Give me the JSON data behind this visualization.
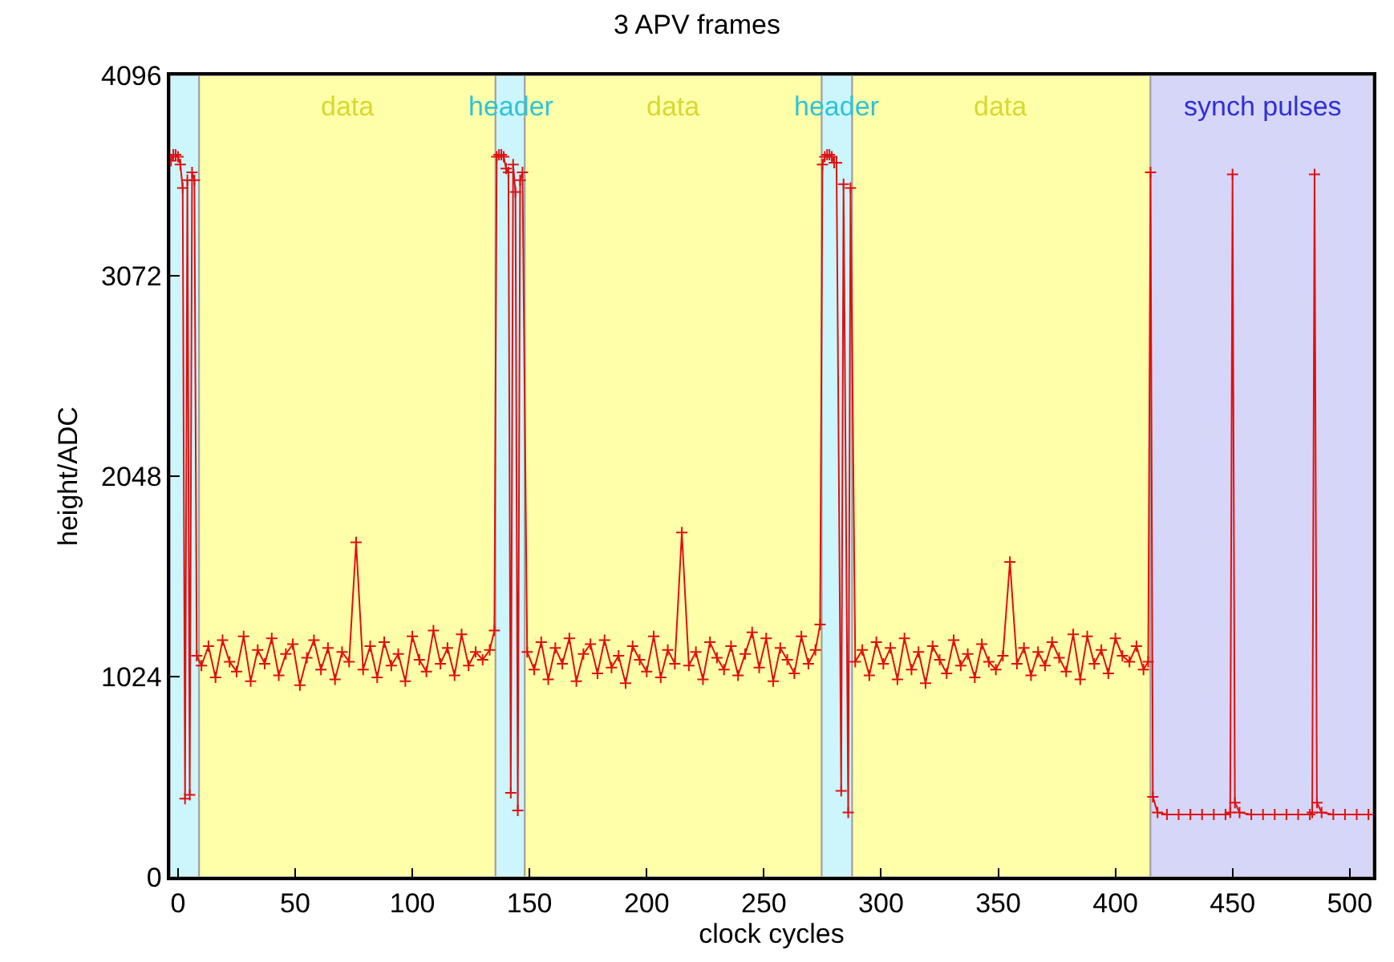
{
  "chart_data": {
    "type": "line",
    "title": "3 APV frames",
    "xlabel": "clock cycles",
    "ylabel": "height/ADC",
    "xlim": [
      -3.4,
      510
    ],
    "xticks": [
      0,
      50,
      100,
      150,
      200,
      250,
      300,
      350,
      400,
      450,
      500
    ],
    "ylim": [
      0,
      4096
    ],
    "yticks": [
      0,
      1024,
      2048,
      3072,
      4096
    ],
    "grid": false,
    "marker": "cross",
    "line_style": "solid",
    "bands": [
      {
        "axis": "x",
        "from": -3.4,
        "to": 9,
        "label": null,
        "color": "#ccf6fc"
      },
      {
        "axis": "x",
        "from": 9,
        "to": 135.5,
        "label": "data",
        "color": "#ffffaa"
      },
      {
        "axis": "x",
        "from": 135.5,
        "to": 148,
        "label": "header",
        "color": "#ccf6fc"
      },
      {
        "axis": "x",
        "from": 148,
        "to": 274.7,
        "label": "data",
        "color": "#ffffaa"
      },
      {
        "axis": "x",
        "from": 274.7,
        "to": 287.7,
        "label": "header",
        "color": "#ccf6fc"
      },
      {
        "axis": "x",
        "from": 287.7,
        "to": 415,
        "label": "data",
        "color": "#ffffaa"
      },
      {
        "axis": "x",
        "from": 415,
        "to": 510,
        "label": "synch pulses",
        "color": "#d6d6f8"
      }
    ],
    "series": [
      {
        "color": "#e01010",
        "x": [
          -3,
          -2,
          -1,
          0,
          1,
          2,
          3,
          4,
          5,
          6,
          7,
          8,
          10,
          13,
          16,
          19,
          22,
          25,
          28,
          31,
          34,
          37,
          40,
          43,
          46,
          49,
          52,
          55,
          58,
          61,
          64,
          67,
          70,
          73,
          76,
          79,
          82,
          85,
          88,
          91,
          94,
          97,
          100,
          103,
          106,
          109,
          112,
          115,
          118,
          121,
          124,
          127,
          130,
          133,
          135,
          136,
          137,
          138,
          139,
          140,
          141,
          142,
          143,
          144,
          145,
          146,
          147,
          149,
          152,
          155,
          158,
          161,
          164,
          167,
          170,
          173,
          176,
          179,
          182,
          185,
          188,
          191,
          194,
          197,
          200,
          203,
          206,
          209,
          212,
          215,
          218,
          221,
          224,
          227,
          230,
          233,
          236,
          239,
          242,
          245,
          248,
          251,
          254,
          257,
          260,
          263,
          266,
          269,
          272,
          274,
          275,
          276,
          277,
          278,
          279,
          280,
          281,
          283,
          284,
          286,
          287,
          289,
          292,
          295,
          298,
          301,
          304,
          307,
          310,
          313,
          316,
          319,
          322,
          325,
          328,
          331,
          334,
          337,
          340,
          343,
          346,
          349,
          352,
          355,
          358,
          361,
          364,
          367,
          370,
          373,
          376,
          379,
          382,
          385,
          388,
          391,
          394,
          397,
          400,
          403,
          406,
          409,
          412,
          414,
          415,
          416,
          418,
          422,
          427,
          432,
          437,
          442,
          447,
          449,
          450,
          451,
          453,
          458,
          463,
          468,
          473,
          478,
          483,
          484,
          485,
          486,
          488,
          493,
          498,
          503,
          508
        ],
        "values": [
          3660,
          3690,
          3690,
          3680,
          3640,
          3520,
          400,
          3560,
          420,
          3600,
          3560,
          1130,
          1080,
          1180,
          1020,
          1210,
          1100,
          1050,
          1230,
          1000,
          1160,
          1090,
          1220,
          1030,
          1140,
          1190,
          980,
          1120,
          1210,
          1060,
          1170,
          1010,
          1150,
          1100,
          1710,
          1060,
          1180,
          1020,
          1200,
          1080,
          1140,
          1000,
          1230,
          1110,
          1050,
          1260,
          1090,
          1170,
          1030,
          1240,
          1080,
          1150,
          1110,
          1160,
          1260,
          3680,
          3690,
          3690,
          3680,
          3620,
          3600,
          430,
          3640,
          3500,
          340,
          3560,
          3600,
          1150,
          1060,
          1200,
          1010,
          1170,
          1090,
          1220,
          1000,
          1140,
          1190,
          1040,
          1210,
          1070,
          1130,
          990,
          1180,
          1110,
          1050,
          1230,
          1020,
          1160,
          1090,
          1760,
          1080,
          1150,
          1010,
          1200,
          1120,
          1060,
          1180,
          1030,
          1140,
          1250,
          1070,
          1220,
          1000,
          1170,
          1110,
          1040,
          1230,
          1090,
          1160,
          1290,
          3640,
          3680,
          3690,
          3690,
          3680,
          3650,
          3650,
          440,
          3540,
          330,
          3520,
          1100,
          1160,
          1030,
          1200,
          1090,
          1170,
          1010,
          1220,
          1060,
          1150,
          990,
          1180,
          1110,
          1040,
          1210,
          1080,
          1140,
          1020,
          1190,
          1100,
          1060,
          1130,
          1610,
          1090,
          1170,
          1030,
          1150,
          1080,
          1200,
          1120,
          1050,
          1240,
          1010,
          1230,
          1090,
          1160,
          1040,
          1220,
          1130,
          1100,
          1180,
          1060,
          1100,
          3600,
          410,
          330,
          320,
          320,
          320,
          320,
          320,
          320,
          330,
          3590,
          380,
          330,
          320,
          320,
          320,
          320,
          320,
          320,
          330,
          3590,
          380,
          330,
          320,
          320,
          320,
          320
        ]
      }
    ]
  }
}
